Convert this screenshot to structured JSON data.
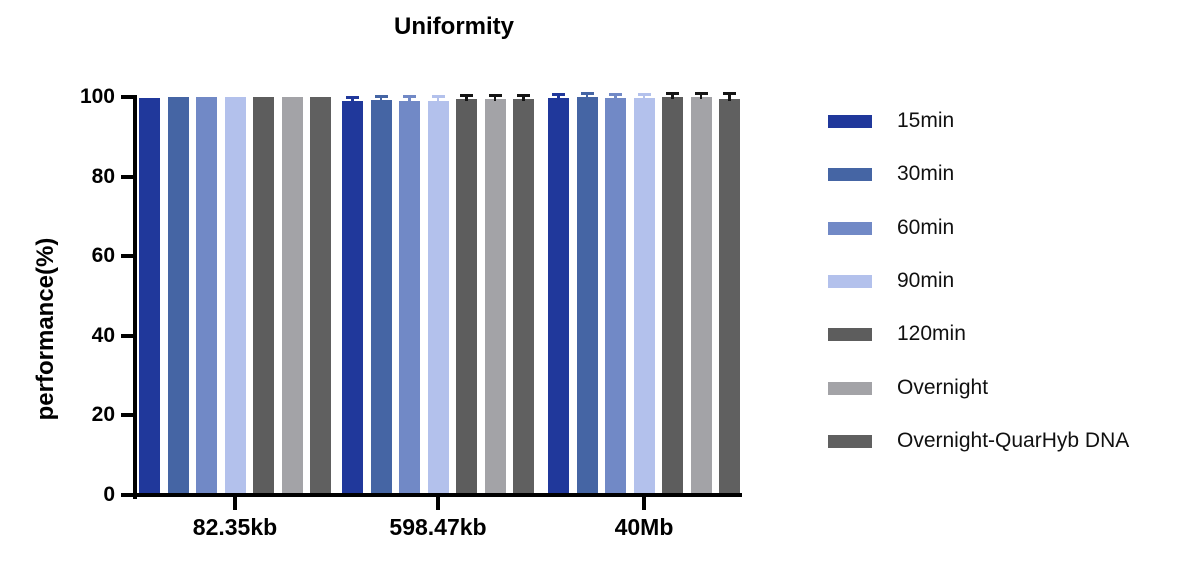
{
  "figure": {
    "title": "Uniformity"
  },
  "chart_data": {
    "type": "bar",
    "title": "Uniformity",
    "xlabel": "",
    "ylabel": "performance(%)",
    "ylim": [
      0,
      100
    ],
    "yticks": [
      0,
      20,
      40,
      60,
      80,
      100
    ],
    "grid": false,
    "legend_position": "right",
    "categories": [
      "82.35kb",
      "598.47kb",
      "40Mb"
    ],
    "series": [
      {
        "name": "15min",
        "color": "#20389b",
        "error_color": "#20389b",
        "values": [
          99.8,
          98.9,
          99.8
        ],
        "errors": [
          0,
          0.5,
          0.15
        ]
      },
      {
        "name": "30min",
        "color": "#4565a4",
        "error_color": "#4565a4",
        "values": [
          99.9,
          99.2,
          99.9
        ],
        "errors": [
          0,
          0.4,
          0.1
        ]
      },
      {
        "name": "60min",
        "color": "#7189c6",
        "error_color": "#7189c6",
        "values": [
          99.9,
          99.1,
          99.8
        ],
        "errors": [
          0,
          0.4,
          0.1
        ]
      },
      {
        "name": "90min",
        "color": "#b3c1ec",
        "error_color": "#b3c1ec",
        "values": [
          99.9,
          99.1,
          99.8
        ],
        "errors": [
          0,
          0.4,
          0.1
        ]
      },
      {
        "name": "120min",
        "color": "#5d5d5d",
        "error_color": "#141414",
        "values": [
          99.9,
          99.5,
          99.9
        ],
        "errors": [
          0,
          0.35,
          0.2
        ]
      },
      {
        "name": "Overnight",
        "color": "#a3a3a7",
        "error_color": "#141414",
        "values": [
          99.9,
          99.6,
          99.9
        ],
        "errors": [
          0,
          0.3,
          0.25
        ]
      },
      {
        "name": "Overnight-QuarHyb DNA",
        "color": "#606060",
        "error_color": "#141414",
        "values": [
          99.9,
          99.6,
          99.6
        ],
        "errors": [
          0,
          0.35,
          0.8
        ]
      }
    ]
  }
}
